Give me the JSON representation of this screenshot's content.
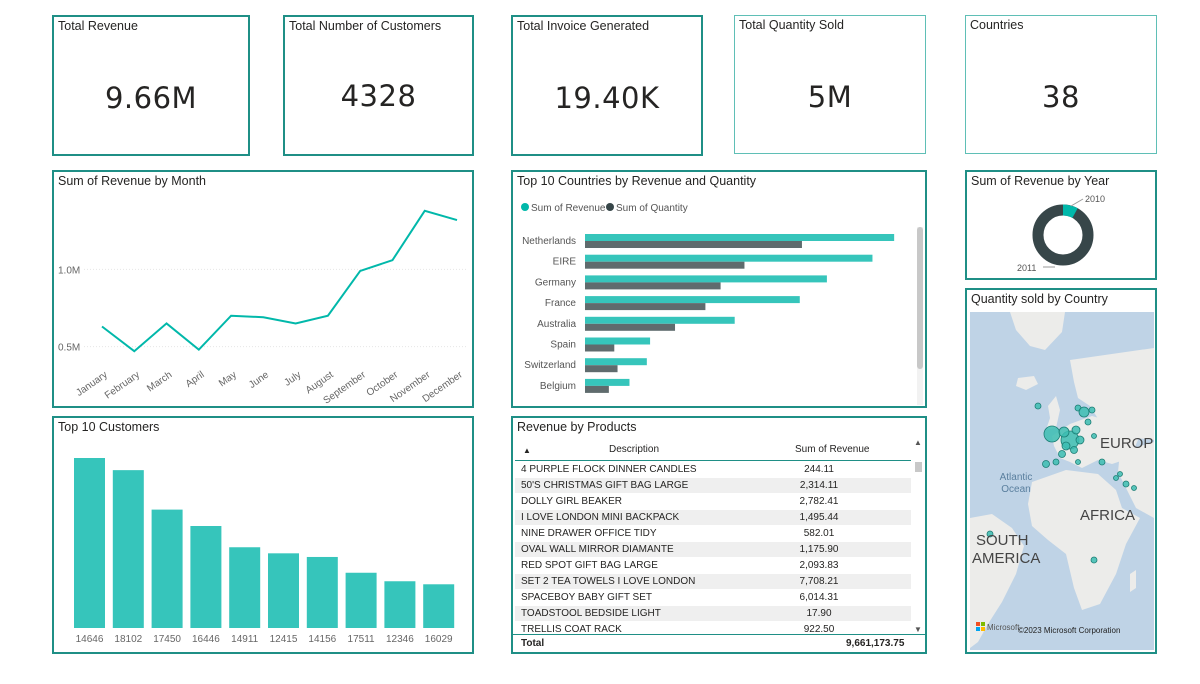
{
  "kpis": {
    "revenue": {
      "title": "Total Revenue",
      "value": "9.66M"
    },
    "customers": {
      "title": "Total Number of Customers",
      "value": "4328"
    },
    "invoices": {
      "title": "Total Invoice Generated",
      "value": "19.40K"
    },
    "quantity": {
      "title": "Total Quantity Sold",
      "value": "5M"
    },
    "countries": {
      "title": "Countries",
      "value": "38"
    }
  },
  "colors": {
    "teal": "#01b8aa",
    "teal_bar": "#36c5bb",
    "dark": "#374649",
    "gray_bar": "#5f6b6d"
  },
  "chart_data": [
    {
      "type": "line",
      "title": "Sum of Revenue by Month",
      "categories": [
        "January",
        "February",
        "March",
        "April",
        "May",
        "June",
        "July",
        "August",
        "September",
        "October",
        "November",
        "December"
      ],
      "values": [
        0.63,
        0.47,
        0.65,
        0.48,
        0.7,
        0.69,
        0.65,
        0.7,
        0.99,
        1.06,
        1.38,
        1.32
      ],
      "y_ticks": [
        {
          "value": 0.5,
          "label": "0.5M"
        },
        {
          "value": 1.0,
          "label": "1.0M"
        }
      ],
      "ylim": [
        0.4,
        1.45
      ],
      "grid": true
    },
    {
      "type": "bar",
      "orientation": "horizontal",
      "title": "Top 10 Countries by Revenue and Quantity",
      "legend_position": "top-left",
      "categories": [
        "Netherlands",
        "EIRE",
        "Germany",
        "France",
        "Australia",
        "Spain",
        "Switzerland",
        "Belgium"
      ],
      "series": [
        {
          "name": "Sum of Revenue",
          "values": [
            285,
            265,
            223,
            198,
            138,
            60,
            57,
            41
          ]
        },
        {
          "name": "Sum of Quantity",
          "values": [
            200,
            147,
            125,
            111,
            83,
            27,
            30,
            22
          ]
        }
      ]
    },
    {
      "type": "pie",
      "title": "Sum of Revenue by Year",
      "labels": [
        "2010",
        "2011"
      ],
      "values": [
        8,
        92
      ]
    },
    {
      "type": "bar",
      "title": "Top 10 Customers",
      "categories": [
        "14646",
        "18102",
        "17450",
        "16446",
        "14911",
        "12415",
        "14156",
        "17511",
        "12346",
        "16029"
      ],
      "values": [
        280,
        260,
        195,
        168,
        133,
        123,
        117,
        91,
        77,
        72
      ]
    },
    {
      "type": "table",
      "title": "Revenue by Products",
      "columns": [
        "Description",
        "Sum of Revenue"
      ],
      "rows": [
        [
          "4 PURPLE FLOCK DINNER CANDLES",
          "244.11"
        ],
        [
          "50'S CHRISTMAS GIFT BAG LARGE",
          "2,314.11"
        ],
        [
          "DOLLY GIRL BEAKER",
          "2,782.41"
        ],
        [
          "I LOVE LONDON MINI BACKPACK",
          "1,495.44"
        ],
        [
          "NINE DRAWER OFFICE TIDY",
          "582.01"
        ],
        [
          "OVAL WALL MIRROR DIAMANTE",
          "1,175.90"
        ],
        [
          "RED SPOT GIFT BAG LARGE",
          "2,093.83"
        ],
        [
          "SET 2 TEA TOWELS I LOVE LONDON",
          "7,708.21"
        ],
        [
          "SPACEBOY BABY GIFT SET",
          "6,014.31"
        ],
        [
          "TOADSTOOL BEDSIDE LIGHT",
          "17.90"
        ],
        [
          "TRELLIS COAT RACK",
          "922.50"
        ]
      ],
      "total_label": "Total",
      "total_value": "9,661,173.75"
    }
  ],
  "map": {
    "title": "Quantity sold by Country",
    "labels": {
      "europe": "EUROPE",
      "africa": "AFRICA",
      "atlantic": "Atlantic",
      "ocean": "Ocean",
      "south": "SOUTH",
      "america": "AMERICA"
    },
    "credit_brand": "Microsoft",
    "credit": "©2023 Microsoft Corporation"
  }
}
